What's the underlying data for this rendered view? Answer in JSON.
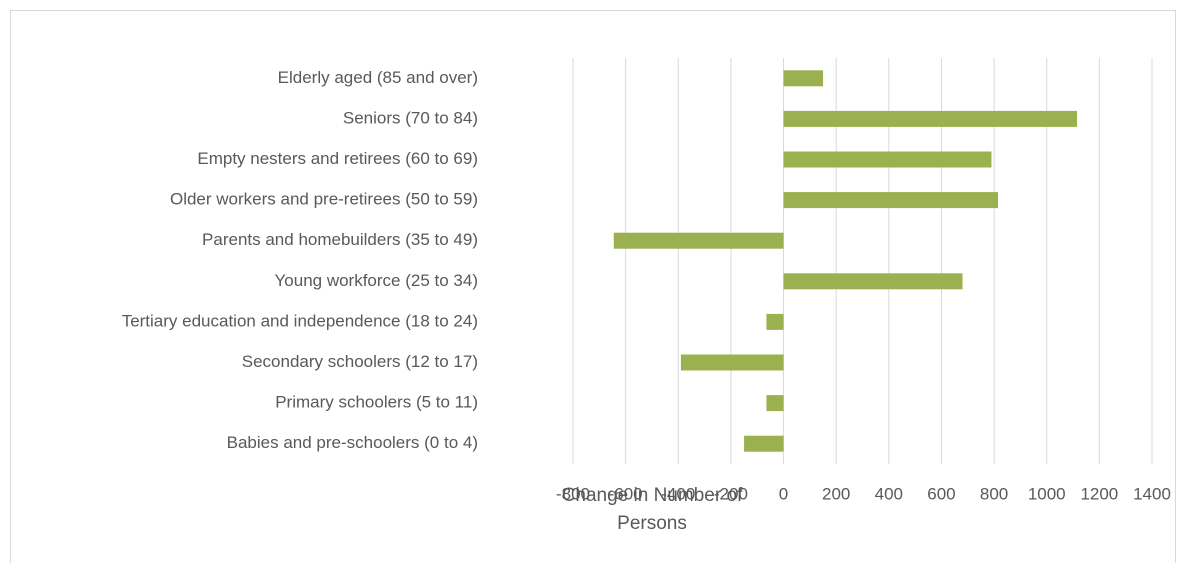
{
  "chart_data": {
    "type": "bar",
    "orientation": "horizontal",
    "x_label": "Change in Number of Persons",
    "categories": [
      "Elderly aged (85 and over)",
      "Seniors (70 to 84)",
      "Empty nesters and retirees (60 to 69)",
      "Older workers and pre-retirees (50 to 59)",
      "Parents and homebuilders (35 to 49)",
      "Young workforce (25 to 34)",
      "Tertiary education and independence (18 to 24)",
      "Secondary schoolers (12 to 17)",
      "Primary schoolers (5 to 11)",
      "Babies and pre-schoolers (0 to 4)"
    ],
    "values": [
      150,
      1115,
      790,
      815,
      -645,
      680,
      -65,
      -390,
      -65,
      -150
    ],
    "color": "#9bb04f",
    "xlim": [
      -800,
      1400
    ],
    "xticks": [
      -800,
      -600,
      -400,
      -200,
      0,
      200,
      400,
      600,
      800,
      1000,
      1200,
      1400
    ],
    "grid": true
  }
}
